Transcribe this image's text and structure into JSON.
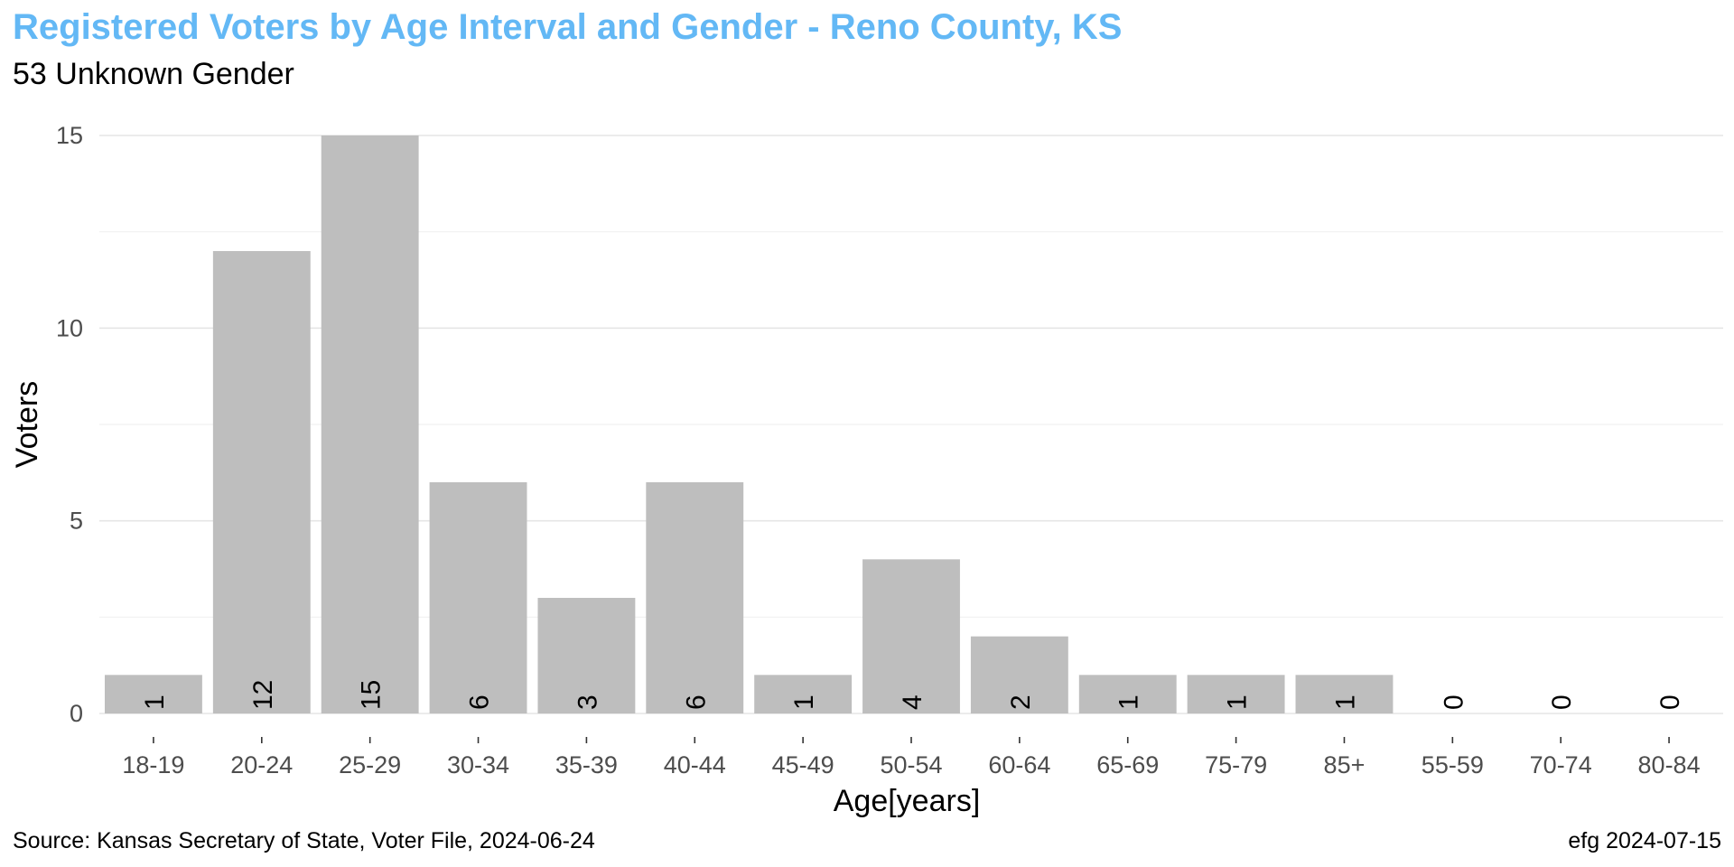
{
  "title": "Registered Voters by Age Interval and Gender - Reno County, KS",
  "subtitle": "53 Unknown Gender",
  "footer": {
    "source": "Source:  Kansas Secretary of State, Voter File, 2024-06-24",
    "credit": "efg 2024-07-15"
  },
  "colors": {
    "title": "#63b8f5",
    "bar": "#bebebe"
  },
  "chart_data": {
    "type": "bar",
    "title": "Registered Voters by Age Interval and Gender - Reno County, KS",
    "subtitle": "53 Unknown Gender",
    "xlabel": "Age[years]",
    "ylabel": "Voters",
    "categories": [
      "18-19",
      "20-24",
      "25-29",
      "30-34",
      "35-39",
      "40-44",
      "45-49",
      "50-54",
      "60-64",
      "65-69",
      "75-79",
      "85+",
      "55-59",
      "70-74",
      "80-84"
    ],
    "values": [
      1,
      12,
      15,
      6,
      3,
      6,
      1,
      4,
      2,
      1,
      1,
      1,
      0,
      0,
      0
    ],
    "ylim": [
      0,
      15
    ],
    "yticks": [
      0,
      5,
      10,
      15
    ],
    "grid": true,
    "legend": "none",
    "data_labels": "rotated, at bar base"
  }
}
